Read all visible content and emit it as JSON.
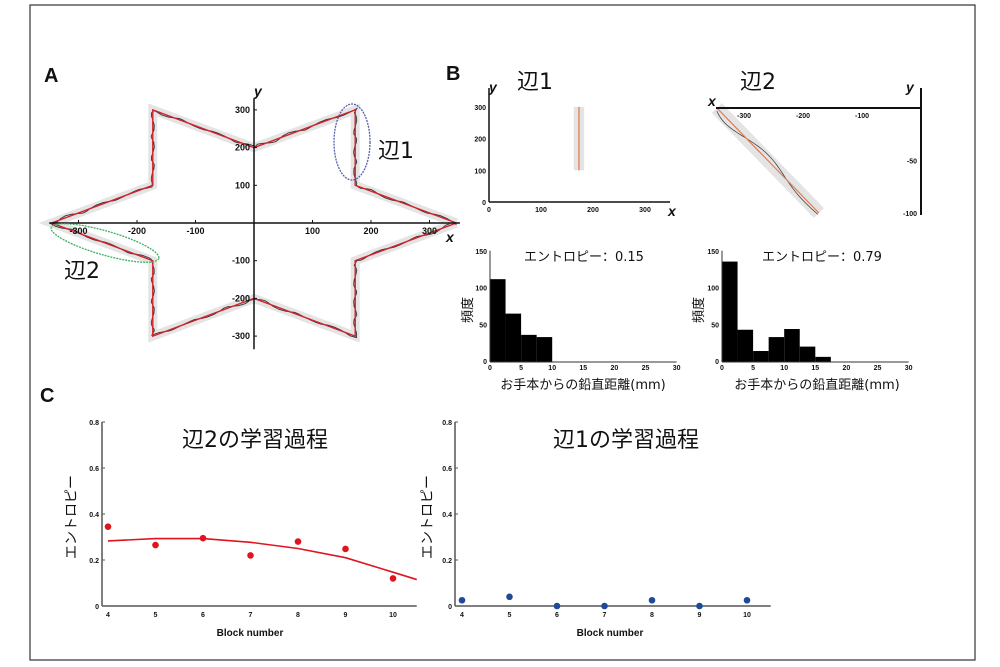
{
  "panels": {
    "a": "A",
    "b": "B",
    "c": "C"
  },
  "colors": {
    "trace": "#d4202a",
    "drawn": "#333333",
    "band": "#e4e4e4",
    "ellipse1": "#5560b0",
    "ellipse2": "#3cb060",
    "dots_c2": "#e0141e",
    "dots_c1": "#1f4a9a",
    "bars": "#000000"
  },
  "chart_data": [
    {
      "id": "A",
      "type": "line",
      "xlabel": "x",
      "ylabel": "y",
      "xticks": [
        -300,
        -200,
        -100,
        100,
        200,
        300
      ],
      "yticks": [
        300,
        200,
        100,
        -100,
        -200,
        -300
      ],
      "xlim": [
        -350,
        350
      ],
      "ylim": [
        -330,
        330
      ],
      "series": [
        {
          "x": [
            346,
            173,
            173,
            0,
            -173,
            -173,
            -346,
            -173,
            -173,
            0,
            173,
            173,
            346
          ],
          "y": [
            0,
            100,
            300,
            200,
            300,
            100,
            0,
            -100,
            -300,
            -200,
            -300,
            -100,
            0
          ]
        }
      ],
      "annotations": [
        "辺1",
        "辺2"
      ]
    },
    {
      "id": "B-side1",
      "type": "line",
      "title": "辺1",
      "xlabel": "x",
      "ylabel": "y",
      "xticks": [
        0,
        100,
        200,
        300
      ],
      "yticks": [
        0,
        100,
        200,
        300
      ],
      "series": [
        {
          "x": [
            173,
            173
          ],
          "y": [
            100,
            300
          ]
        }
      ]
    },
    {
      "id": "B-side2",
      "type": "line",
      "title": "辺2",
      "xlabel": "x",
      "ylabel": "y",
      "xticks": [
        -300,
        -200,
        -100
      ],
      "yticks": [
        -50,
        -100
      ],
      "series": [
        {
          "x": [
            -346,
            -173
          ],
          "y": [
            0,
            -100
          ]
        }
      ]
    },
    {
      "id": "B-hist1",
      "type": "bar",
      "title": "エントロピー：0.15",
      "xlabel": "お手本からの鉛直距離(mm)",
      "ylabel": "頻度",
      "bin_width": 2.5,
      "bin_starts": [
        0,
        2.5,
        5,
        7.5
      ],
      "values": [
        113,
        66,
        37,
        34
      ],
      "xticks": [
        0,
        5,
        10,
        15,
        20,
        25,
        30
      ],
      "yticks": [
        0,
        50,
        100,
        150
      ],
      "xlim": [
        0,
        30
      ],
      "ylim": [
        0,
        150
      ]
    },
    {
      "id": "B-hist2",
      "type": "bar",
      "title": "エントロピー：0.79",
      "xlabel": "お手本からの鉛直距離(mm)",
      "ylabel": "頻度",
      "bin_width": 2.5,
      "bin_starts": [
        0,
        2.5,
        5,
        7.5,
        10,
        12.5,
        15
      ],
      "values": [
        137,
        44,
        15,
        34,
        45,
        21,
        7
      ],
      "xticks": [
        0,
        5,
        10,
        15,
        20,
        25,
        30
      ],
      "yticks": [
        0,
        50,
        100,
        150
      ],
      "xlim": [
        0,
        30
      ],
      "ylim": [
        0,
        150
      ]
    },
    {
      "id": "C-side2",
      "type": "scatter",
      "title": "辺2の学習過程",
      "xlabel": "Block number",
      "ylabel": "エントロピー",
      "x": [
        4,
        5,
        6,
        7,
        8,
        9,
        10
      ],
      "y": [
        0.345,
        0.265,
        0.295,
        0.22,
        0.28,
        0.248,
        0.12
      ],
      "fit": {
        "x": [
          4,
          5,
          6,
          7,
          8,
          9,
          10,
          10.5
        ],
        "y": [
          0.283,
          0.293,
          0.293,
          0.277,
          0.25,
          0.21,
          0.147,
          0.115
        ]
      },
      "xticks": [
        4,
        5,
        6,
        7,
        8,
        9,
        10
      ],
      "yticks": [
        0,
        0.2,
        0.4,
        0.6,
        0.8
      ],
      "ytick_labels": [
        "0",
        "0.2",
        "0.4",
        "0.6",
        "0.8"
      ],
      "xlim": [
        4,
        10.5
      ],
      "ylim": [
        0,
        0.8
      ]
    },
    {
      "id": "C-side1",
      "type": "scatter",
      "title": "辺1の学習過程",
      "xlabel": "Block number",
      "ylabel": "エントロピー",
      "x": [
        4,
        5,
        6,
        7,
        8,
        9,
        10
      ],
      "y": [
        0.025,
        0.04,
        0,
        0,
        0.025,
        0,
        0.025
      ],
      "xticks": [
        4,
        5,
        6,
        7,
        8,
        9,
        10
      ],
      "yticks": [
        0,
        0.2,
        0.4,
        0.6,
        0.8
      ],
      "ytick_labels": [
        "0",
        "0.2",
        "0.4",
        "0.6",
        "0.8"
      ],
      "xlim": [
        4,
        10.5
      ],
      "ylim": [
        0,
        0.8
      ]
    }
  ]
}
